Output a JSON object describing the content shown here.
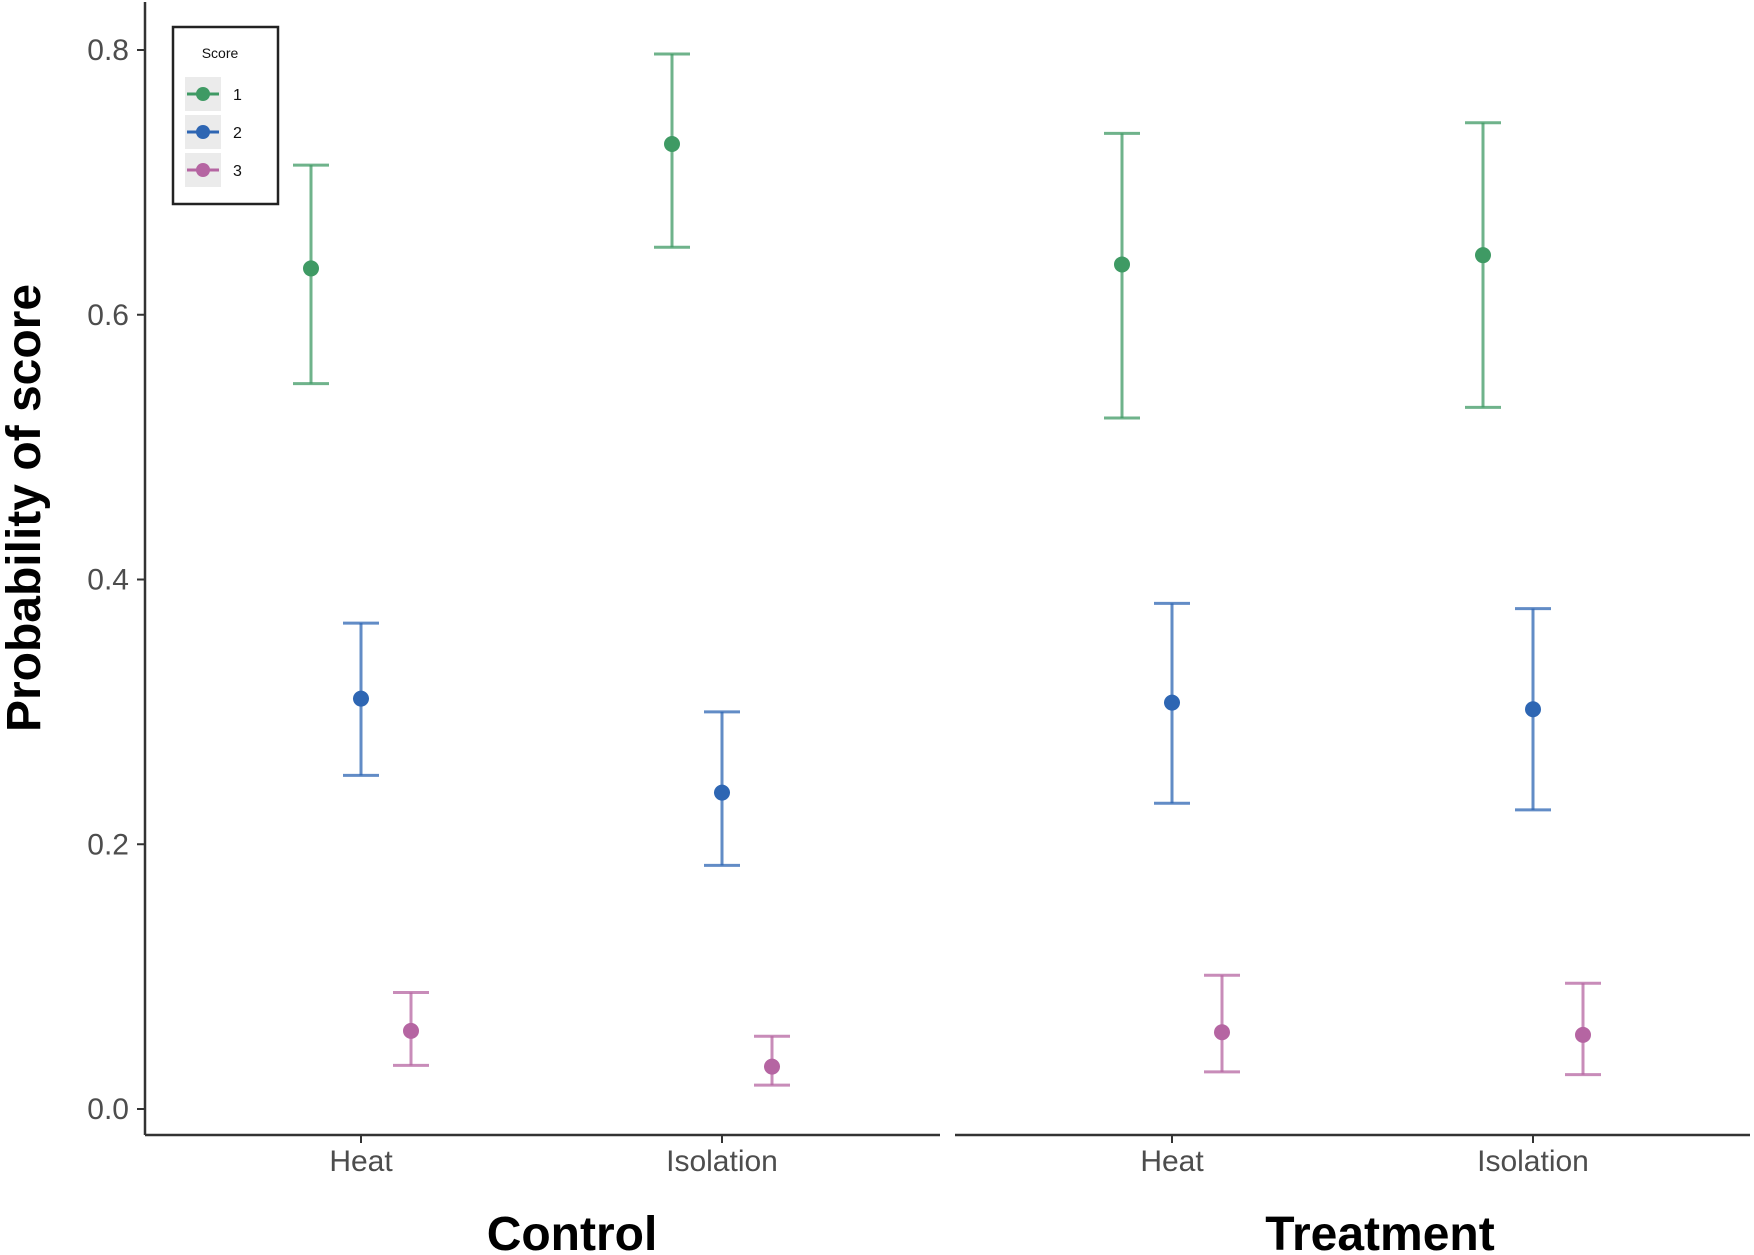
{
  "chart_data": {
    "type": "scatter",
    "subtype": "point-with-error-bars, faceted",
    "ylabel": "Probability of score",
    "ylim": [
      0,
      0.8
    ],
    "yticks": [
      "0.0",
      "0.2",
      "0.4",
      "0.6",
      "0.8"
    ],
    "ytick_values": [
      0,
      0.2,
      0.4,
      0.6,
      0.8
    ],
    "categories": [
      "Heat",
      "Isolation"
    ],
    "legend": {
      "title": "Score",
      "placement": "top-left",
      "entries": [
        "1",
        "2",
        "3"
      ]
    },
    "colors": {
      "1": "#3f9a64",
      "2": "#2e66b3",
      "3": "#b565a2"
    },
    "panels": [
      {
        "title": "Control",
        "series": [
          {
            "name": "1",
            "values": [
              0.635,
              0.729
            ],
            "lower": [
              0.548,
              0.651
            ],
            "upper": [
              0.713,
              0.797
            ]
          },
          {
            "name": "2",
            "values": [
              0.31,
              0.239
            ],
            "lower": [
              0.252,
              0.184
            ],
            "upper": [
              0.367,
              0.3
            ]
          },
          {
            "name": "3",
            "values": [
              0.059,
              0.032
            ],
            "lower": [
              0.033,
              0.018
            ],
            "upper": [
              0.088,
              0.055
            ]
          }
        ]
      },
      {
        "title": "Treatment",
        "series": [
          {
            "name": "1",
            "values": [
              0.638,
              0.645
            ],
            "lower": [
              0.522,
              0.53
            ],
            "upper": [
              0.737,
              0.745
            ]
          },
          {
            "name": "2",
            "values": [
              0.307,
              0.302
            ],
            "lower": [
              0.231,
              0.226
            ],
            "upper": [
              0.382,
              0.378
            ]
          },
          {
            "name": "3",
            "values": [
              0.058,
              0.056
            ],
            "lower": [
              0.028,
              0.026
            ],
            "upper": [
              0.101,
              0.095
            ]
          }
        ]
      }
    ]
  }
}
